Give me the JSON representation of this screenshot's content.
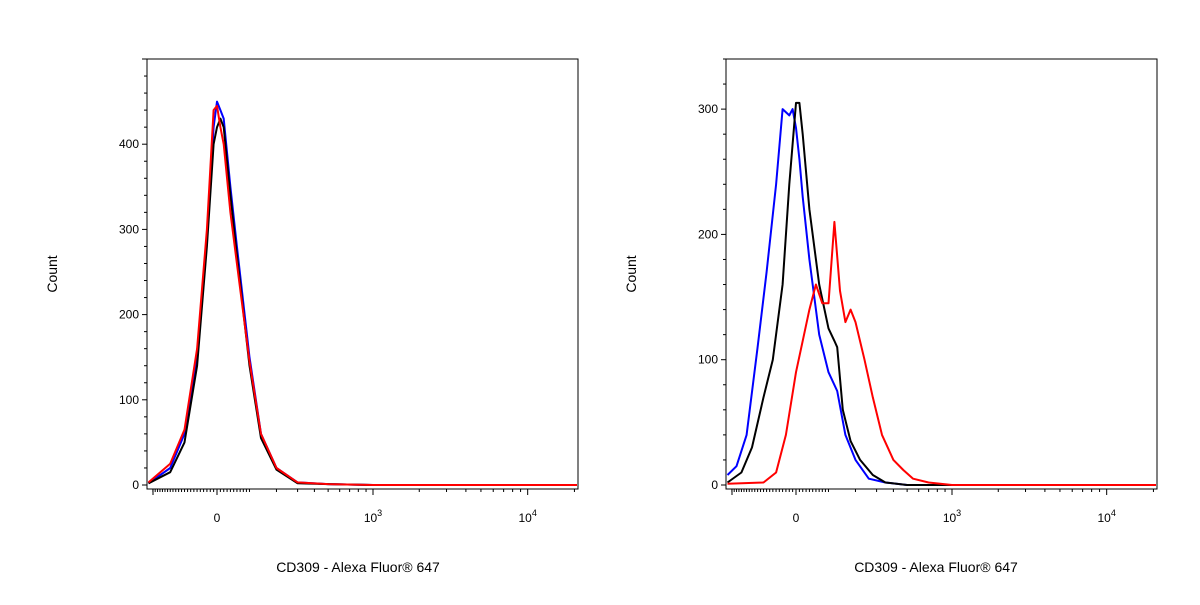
{
  "chart_data": [
    {
      "type": "line",
      "xlabel": "CD309 - Alexa Fluor® 647",
      "ylabel": "Count",
      "x_scale": "biexponential",
      "ylim": [
        0,
        500
      ],
      "y_ticks": [
        {
          "value": 0,
          "label": "0"
        },
        {
          "value": 100,
          "label": "100"
        },
        {
          "value": 200,
          "label": "200"
        },
        {
          "value": 300,
          "label": "300"
        },
        {
          "value": 400,
          "label": "400"
        }
      ],
      "x_ticks": [
        {
          "value": 0,
          "base": "0",
          "exp": ""
        },
        {
          "value": 1000,
          "base": "10",
          "exp": "3"
        },
        {
          "value": 10000,
          "base": "10",
          "exp": "4"
        }
      ],
      "grid": false,
      "series": [
        {
          "color": "#0000ff",
          "x": [
            -240,
            -150,
            -100,
            -60,
            -30,
            -10,
            0,
            10,
            20,
            40,
            60,
            100,
            140,
            200,
            300,
            500,
            1000,
            100000
          ],
          "y": [
            2,
            20,
            60,
            150,
            290,
            420,
            450,
            440,
            430,
            350,
            280,
            150,
            60,
            20,
            3,
            1,
            0,
            0
          ]
        },
        {
          "color": "#000000",
          "x": [
            -240,
            -150,
            -100,
            -60,
            -30,
            -10,
            0,
            10,
            20,
            40,
            60,
            100,
            140,
            200,
            300,
            500,
            1000,
            100000
          ],
          "y": [
            2,
            15,
            50,
            140,
            280,
            400,
            420,
            430,
            420,
            340,
            270,
            140,
            55,
            18,
            2,
            1,
            0,
            0
          ]
        },
        {
          "color": "#ff0000",
          "x": [
            -240,
            -150,
            -100,
            -60,
            -30,
            -10,
            0,
            10,
            20,
            40,
            60,
            100,
            140,
            200,
            300,
            500,
            1000,
            100000
          ],
          "y": [
            3,
            25,
            65,
            160,
            300,
            440,
            445,
            420,
            400,
            320,
            260,
            145,
            60,
            20,
            3,
            1,
            0,
            0
          ]
        }
      ]
    },
    {
      "type": "line",
      "xlabel": "CD309 - Alexa Fluor® 647",
      "ylabel": "Count",
      "x_scale": "biexponential",
      "ylim": [
        0,
        340
      ],
      "y_ticks": [
        {
          "value": 0,
          "label": "0"
        },
        {
          "value": 100,
          "label": "100"
        },
        {
          "value": 200,
          "label": "200"
        },
        {
          "value": 300,
          "label": "300"
        }
      ],
      "x_ticks": [
        {
          "value": 0,
          "base": "0",
          "exp": ""
        },
        {
          "value": 1000,
          "base": "10",
          "exp": "3"
        },
        {
          "value": 10000,
          "base": "10",
          "exp": "4"
        }
      ],
      "grid": false,
      "series": [
        {
          "color": "#0000ff",
          "x": [
            -240,
            -200,
            -160,
            -120,
            -90,
            -60,
            -40,
            -20,
            -10,
            0,
            10,
            20,
            40,
            70,
            100,
            130,
            160,
            200,
            260,
            350,
            500,
            1000,
            100000
          ],
          "y": [
            8,
            15,
            40,
            110,
            170,
            240,
            300,
            295,
            300,
            285,
            260,
            230,
            180,
            120,
            90,
            75,
            40,
            20,
            5,
            2,
            0,
            0,
            0
          ]
        },
        {
          "color": "#000000",
          "x": [
            -240,
            -180,
            -140,
            -100,
            -70,
            -40,
            -20,
            0,
            10,
            20,
            40,
            70,
            100,
            120,
            130,
            150,
            180,
            220,
            280,
            350,
            500,
            1000,
            100000
          ],
          "y": [
            2,
            10,
            30,
            70,
            100,
            160,
            240,
            305,
            305,
            280,
            220,
            160,
            125,
            115,
            110,
            60,
            35,
            20,
            8,
            2,
            0,
            0,
            0
          ]
        },
        {
          "color": "#ff0000",
          "x": [
            -240,
            -100,
            -60,
            -30,
            0,
            20,
            40,
            60,
            80,
            100,
            120,
            140,
            160,
            180,
            200,
            240,
            280,
            330,
            400,
            470,
            550,
            700,
            1000,
            100000
          ],
          "y": [
            1,
            2,
            10,
            40,
            90,
            115,
            140,
            160,
            145,
            145,
            210,
            155,
            130,
            140,
            130,
            100,
            70,
            40,
            20,
            12,
            5,
            2,
            0,
            0
          ]
        }
      ]
    }
  ]
}
